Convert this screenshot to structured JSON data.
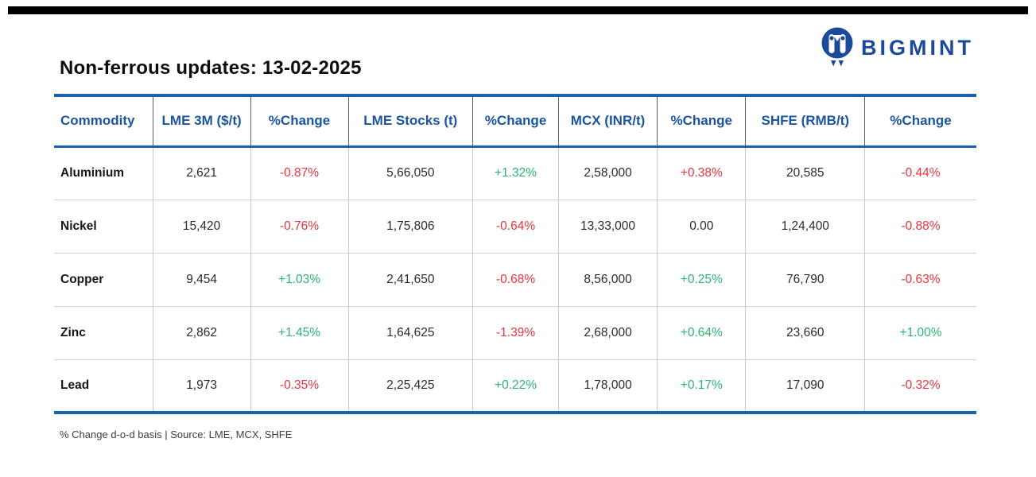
{
  "header": {
    "title": "Non-ferrous updates: 13-02-2025",
    "brand": {
      "name": "BIGMINT"
    }
  },
  "table": {
    "columns": [
      "Commodity",
      "LME 3M ($/t)",
      "%Change",
      "LME Stocks (t)",
      "%Change",
      "MCX (INR/t)",
      "%Change",
      "SHFE (RMB/t)",
      "%Change"
    ],
    "rows": [
      {
        "commodity": "Aluminium",
        "values": [
          {
            "v": "2,621",
            "c": "dark"
          },
          {
            "v": "-0.87%",
            "c": "red"
          },
          {
            "v": "5,66,050",
            "c": "dark"
          },
          {
            "v": "+1.32%",
            "c": "green"
          },
          {
            "v": "2,58,000",
            "c": "dark"
          },
          {
            "v": "+0.38%",
            "c": "red"
          },
          {
            "v": "20,585",
            "c": "dark"
          },
          {
            "v": "-0.44%",
            "c": "red"
          }
        ]
      },
      {
        "commodity": "Nickel",
        "values": [
          {
            "v": "15,420",
            "c": "dark"
          },
          {
            "v": "-0.76%",
            "c": "red"
          },
          {
            "v": "1,75,806",
            "c": "dark"
          },
          {
            "v": "-0.64%",
            "c": "red"
          },
          {
            "v": "13,33,000",
            "c": "dark"
          },
          {
            "v": "0.00",
            "c": "dark"
          },
          {
            "v": "1,24,400",
            "c": "dark"
          },
          {
            "v": "-0.88%",
            "c": "red"
          }
        ]
      },
      {
        "commodity": "Copper",
        "values": [
          {
            "v": "9,454",
            "c": "dark"
          },
          {
            "v": "+1.03%",
            "c": "green"
          },
          {
            "v": "2,41,650",
            "c": "dark"
          },
          {
            "v": "-0.68%",
            "c": "red"
          },
          {
            "v": "8,56,000",
            "c": "dark"
          },
          {
            "v": "+0.25%",
            "c": "green"
          },
          {
            "v": "76,790",
            "c": "dark"
          },
          {
            "v": "-0.63%",
            "c": "red"
          }
        ]
      },
      {
        "commodity": "Zinc",
        "values": [
          {
            "v": "2,862",
            "c": "dark"
          },
          {
            "v": "+1.45%",
            "c": "green"
          },
          {
            "v": "1,64,625",
            "c": "dark"
          },
          {
            "v": "-1.39%",
            "c": "red"
          },
          {
            "v": "2,68,000",
            "c": "dark"
          },
          {
            "v": "+0.64%",
            "c": "green"
          },
          {
            "v": "23,660",
            "c": "dark"
          },
          {
            "v": "+1.00%",
            "c": "green"
          }
        ]
      },
      {
        "commodity": "Lead",
        "values": [
          {
            "v": "1,973",
            "c": "dark"
          },
          {
            "v": "-0.35%",
            "c": "red"
          },
          {
            "v": "2,25,425",
            "c": "dark"
          },
          {
            "v": "+0.22%",
            "c": "green"
          },
          {
            "v": "1,78,000",
            "c": "dark"
          },
          {
            "v": "+0.17%",
            "c": "green"
          },
          {
            "v": "17,090",
            "c": "dark"
          },
          {
            "v": "-0.32%",
            "c": "red"
          }
        ]
      }
    ]
  },
  "footer": {
    "note": "% Change d-o-d basis | Source: LME, MCX, SHFE"
  },
  "colors": {
    "brand_blue": "#1b4a9b",
    "header_text_blue": "#1b55a0",
    "border_blue": "#1a61ac",
    "negative_red": "#e8353e",
    "positive_green": "#2bb673",
    "body_text": "#2b2b2b"
  },
  "chart_data": {
    "type": "table",
    "title": "Non-ferrous updates: 13-02-2025",
    "columns": [
      "Commodity",
      "LME 3M ($/t)",
      "%Change",
      "LME Stocks (t)",
      "%Change",
      "MCX (INR/t)",
      "%Change",
      "SHFE (RMB/t)",
      "%Change"
    ],
    "rows": [
      [
        "Aluminium",
        "2,621",
        "-0.87%",
        "5,66,050",
        "+1.32%",
        "2,58,000",
        "+0.38%",
        "20,585",
        "-0.44%"
      ],
      [
        "Nickel",
        "15,420",
        "-0.76%",
        "1,75,806",
        "-0.64%",
        "13,33,000",
        "0.00",
        "1,24,400",
        "-0.88%"
      ],
      [
        "Copper",
        "9,454",
        "+1.03%",
        "2,41,650",
        "-0.68%",
        "8,56,000",
        "+0.25%",
        "76,790",
        "-0.63%"
      ],
      [
        "Zinc",
        "2,862",
        "+1.45%",
        "1,64,625",
        "-1.39%",
        "2,68,000",
        "+0.64%",
        "23,660",
        "+1.00%"
      ],
      [
        "Lead",
        "1,973",
        "-0.35%",
        "2,25,425",
        "+0.22%",
        "1,78,000",
        "+0.17%",
        "17,090",
        "-0.32%"
      ]
    ],
    "annotations": [
      "% Change d-o-d basis | Source: LME, MCX, SHFE"
    ],
    "legend_position": "none",
    "grid": true
  }
}
